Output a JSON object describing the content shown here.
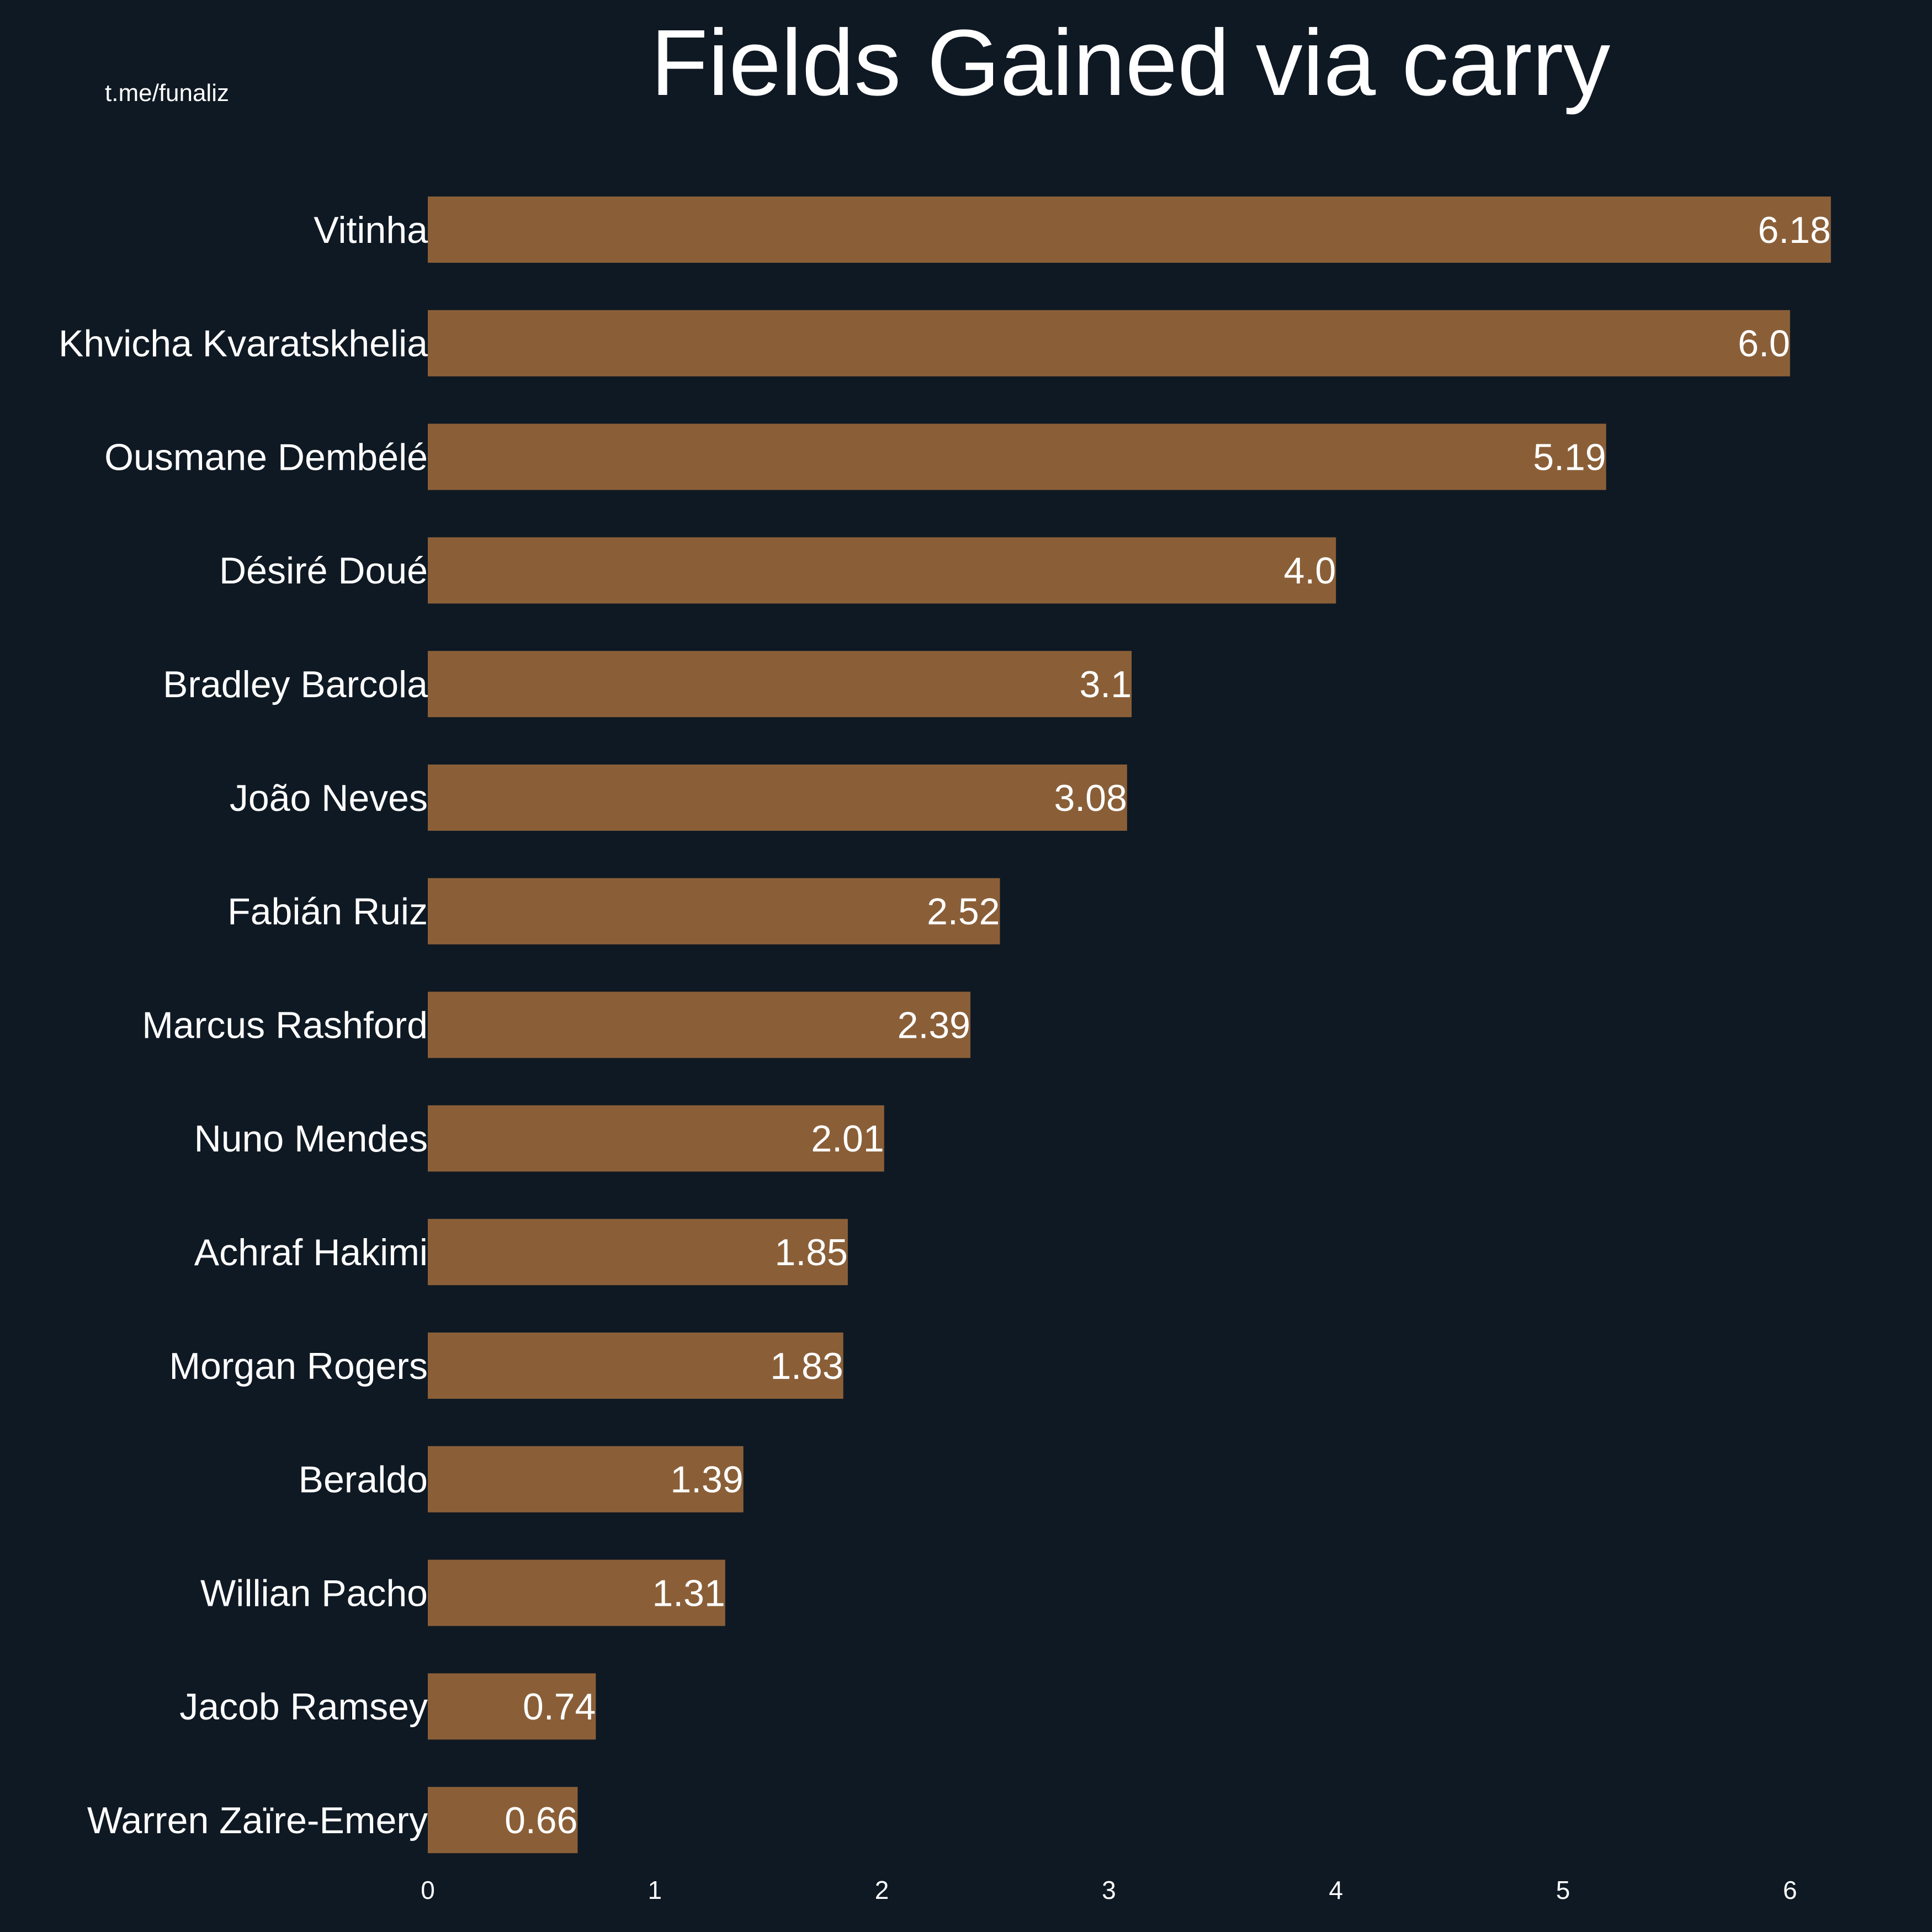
{
  "watermark": "t.me/funaliz",
  "colors": {
    "background": "#0f1923",
    "bar": "#8a5f38",
    "text": "#ffffff"
  },
  "chart_data": {
    "type": "bar",
    "orientation": "horizontal",
    "title": "Fields Gained via carry",
    "categories": [
      "Vitinha",
      "Khvicha Kvaratskhelia",
      "Ousmane Dembélé",
      "Désiré Doué",
      "Bradley Barcola",
      "João Neves",
      "Fabián Ruiz",
      "Marcus Rashford",
      "Nuno Mendes",
      "Achraf Hakimi",
      "Morgan Rogers",
      "Beraldo",
      "Willian Pacho",
      "Jacob Ramsey",
      "Warren Zaïre-Emery"
    ],
    "values": [
      6.18,
      6.0,
      5.19,
      4.0,
      3.1,
      3.08,
      2.52,
      2.39,
      2.01,
      1.85,
      1.83,
      1.39,
      1.31,
      0.74,
      0.66
    ],
    "value_labels": [
      "6.18",
      "6.0",
      "5.19",
      "4.0",
      "3.1",
      "3.08",
      "2.52",
      "2.39",
      "2.01",
      "1.85",
      "1.83",
      "1.39",
      "1.31",
      "0.74",
      "0.66"
    ],
    "xticks": [
      "0",
      "1",
      "2",
      "3",
      "4",
      "5",
      "6"
    ],
    "xlim": [
      0,
      6.5
    ],
    "grid": false,
    "legend": "none"
  }
}
